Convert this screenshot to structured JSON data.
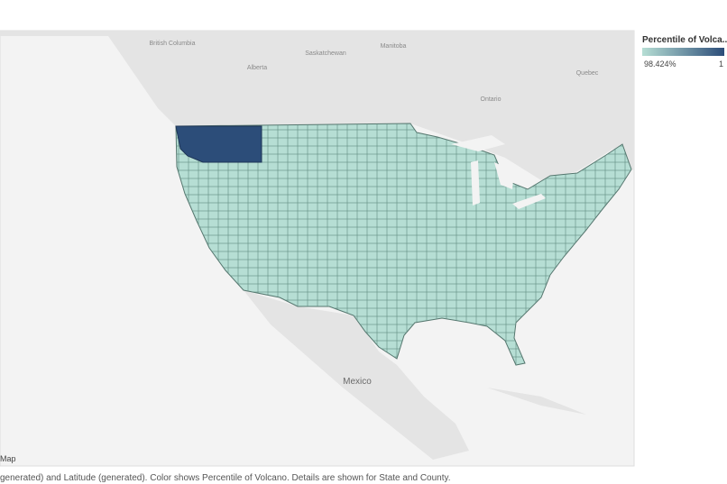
{
  "legend": {
    "title": "Percentile of Volca..",
    "min_label": "98.424%",
    "max_label": "1",
    "color_low": "#b6ded4",
    "color_high": "#2c4d79"
  },
  "map": {
    "tab": "Map",
    "labels": [
      "British Columbia",
      "Alberta",
      "Saskatchewan",
      "Manitoba",
      "Ontario",
      "Quebec",
      "Mexico"
    ]
  },
  "caption": "generated) and Latitude (generated).  Color shows Percentile of Volcano.  Details are shown for State and County."
}
